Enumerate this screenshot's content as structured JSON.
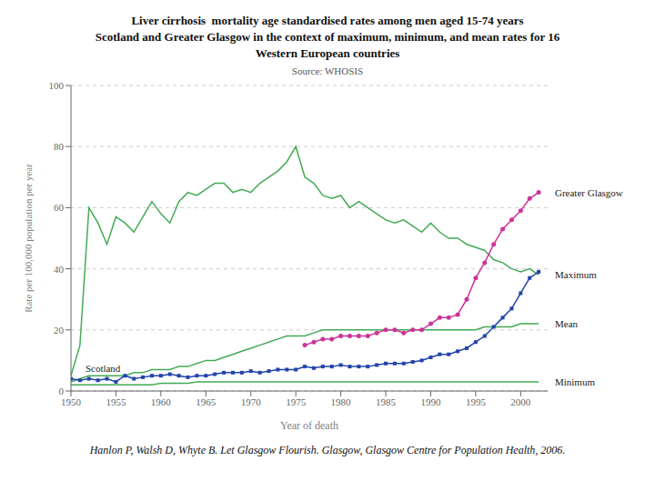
{
  "chart_data": {
    "type": "line",
    "title": "Liver cirrhosis  mortality age standardised rates among men aged 15-74 years\nScotland and Greater Glasgow in the context of maximum, minimum, and mean rates for 16\nWestern European countries",
    "subtitle": "Source: WHOSIS",
    "caption": "Hanlon P, Walsh D, Whyte B. Let Glasgow Flourish. Glasgow, Glasgow Centre for Population Health, 2006.",
    "x_label": "Year of death",
    "y_label": "Rate per 100,000 population per year",
    "x": [
      1950,
      1951,
      1952,
      1953,
      1954,
      1955,
      1956,
      1957,
      1958,
      1959,
      1960,
      1961,
      1962,
      1963,
      1964,
      1965,
      1966,
      1967,
      1968,
      1969,
      1970,
      1971,
      1972,
      1973,
      1974,
      1975,
      1976,
      1977,
      1978,
      1979,
      1980,
      1981,
      1982,
      1983,
      1984,
      1985,
      1986,
      1987,
      1988,
      1989,
      1990,
      1991,
      1992,
      1993,
      1994,
      1995,
      1996,
      1997,
      1998,
      1999,
      2000,
      2001,
      2002
    ],
    "series": [
      {
        "name": "Maximum",
        "color": "#44aa55",
        "marker": "none",
        "values": [
          5,
          15,
          60,
          55,
          48,
          57,
          55,
          52,
          57,
          62,
          58,
          55,
          62,
          65,
          64,
          66,
          68,
          68,
          65,
          66,
          65,
          68,
          70,
          72,
          75,
          80,
          70,
          68,
          64,
          63,
          64,
          60,
          62,
          60,
          58,
          56,
          55,
          56,
          54,
          52,
          55,
          52,
          50,
          50,
          48,
          47,
          46,
          43,
          42,
          40,
          39,
          40,
          38
        ]
      },
      {
        "name": "Minimum",
        "color": "#44aa55",
        "marker": "none",
        "values": [
          2,
          2,
          2,
          2,
          2,
          2,
          2,
          2,
          2,
          2,
          2.5,
          2.5,
          2.5,
          2.5,
          3,
          3,
          3,
          3,
          3,
          3,
          3,
          3,
          3,
          3,
          3,
          3,
          3,
          3,
          3,
          3,
          3,
          3,
          3,
          3,
          3,
          3,
          3,
          3,
          3,
          3,
          3,
          3,
          3,
          3,
          3,
          3,
          3,
          3,
          3,
          3,
          3,
          3,
          3
        ]
      },
      {
        "name": "Mean",
        "color": "#44aa55",
        "marker": "none",
        "values": [
          3,
          4,
          5,
          5,
          5,
          5,
          5,
          6,
          6,
          7,
          7,
          7,
          8,
          8,
          9,
          10,
          10,
          11,
          12,
          13,
          14,
          15,
          16,
          17,
          18,
          18,
          18,
          19,
          20,
          20,
          20,
          20,
          20,
          20,
          20,
          20,
          20,
          20,
          20,
          20,
          20,
          20,
          20,
          20,
          20,
          20,
          21,
          21,
          21,
          21,
          22,
          22,
          22
        ]
      },
      {
        "name": "Scotland",
        "color": "#2244aa",
        "marker": "square",
        "values": [
          4,
          3.5,
          4,
          3.5,
          4,
          3,
          5,
          4,
          4.5,
          5,
          5,
          5.5,
          5,
          4.5,
          5,
          5,
          5.5,
          6,
          6,
          6,
          6.5,
          6,
          6.5,
          7,
          7,
          7,
          8,
          7.5,
          8,
          8,
          8.5,
          8,
          8,
          8,
          8.5,
          9,
          9,
          9,
          9.5,
          10,
          11,
          12,
          12,
          13,
          14,
          16,
          18,
          21,
          24,
          27,
          32,
          37,
          39
        ]
      },
      {
        "name": "Greater Glasgow",
        "color": "#cc3399",
        "marker": "circle",
        "values": [
          null,
          null,
          null,
          null,
          null,
          null,
          null,
          null,
          null,
          null,
          null,
          null,
          null,
          null,
          null,
          null,
          null,
          null,
          null,
          null,
          null,
          null,
          null,
          null,
          null,
          null,
          15,
          16,
          17,
          17,
          18,
          18,
          18,
          18,
          19,
          20,
          20,
          19,
          20,
          20,
          22,
          24,
          24,
          25,
          30,
          37,
          42,
          48,
          53,
          56,
          59,
          63,
          65
        ]
      }
    ],
    "annotations": [
      {
        "text": "Greater Glasgow",
        "x": 2003.2,
        "y": 65
      },
      {
        "text": "Maximum",
        "x": 2003.2,
        "y": 38
      },
      {
        "text": "Mean",
        "x": 2003.2,
        "y": 22
      },
      {
        "text": "Minimum",
        "x": 2003.2,
        "y": 3
      },
      {
        "text": "Scotland",
        "x": 1951,
        "y": 7.5
      }
    ],
    "xlim": [
      1950,
      2003
    ],
    "ylim": [
      0,
      100
    ],
    "xticks": [
      1950,
      1955,
      1960,
      1965,
      1970,
      1975,
      1980,
      1985,
      1990,
      1995,
      2000
    ],
    "yticks": [
      0,
      20,
      40,
      60,
      80,
      100
    ],
    "grid": "y"
  }
}
